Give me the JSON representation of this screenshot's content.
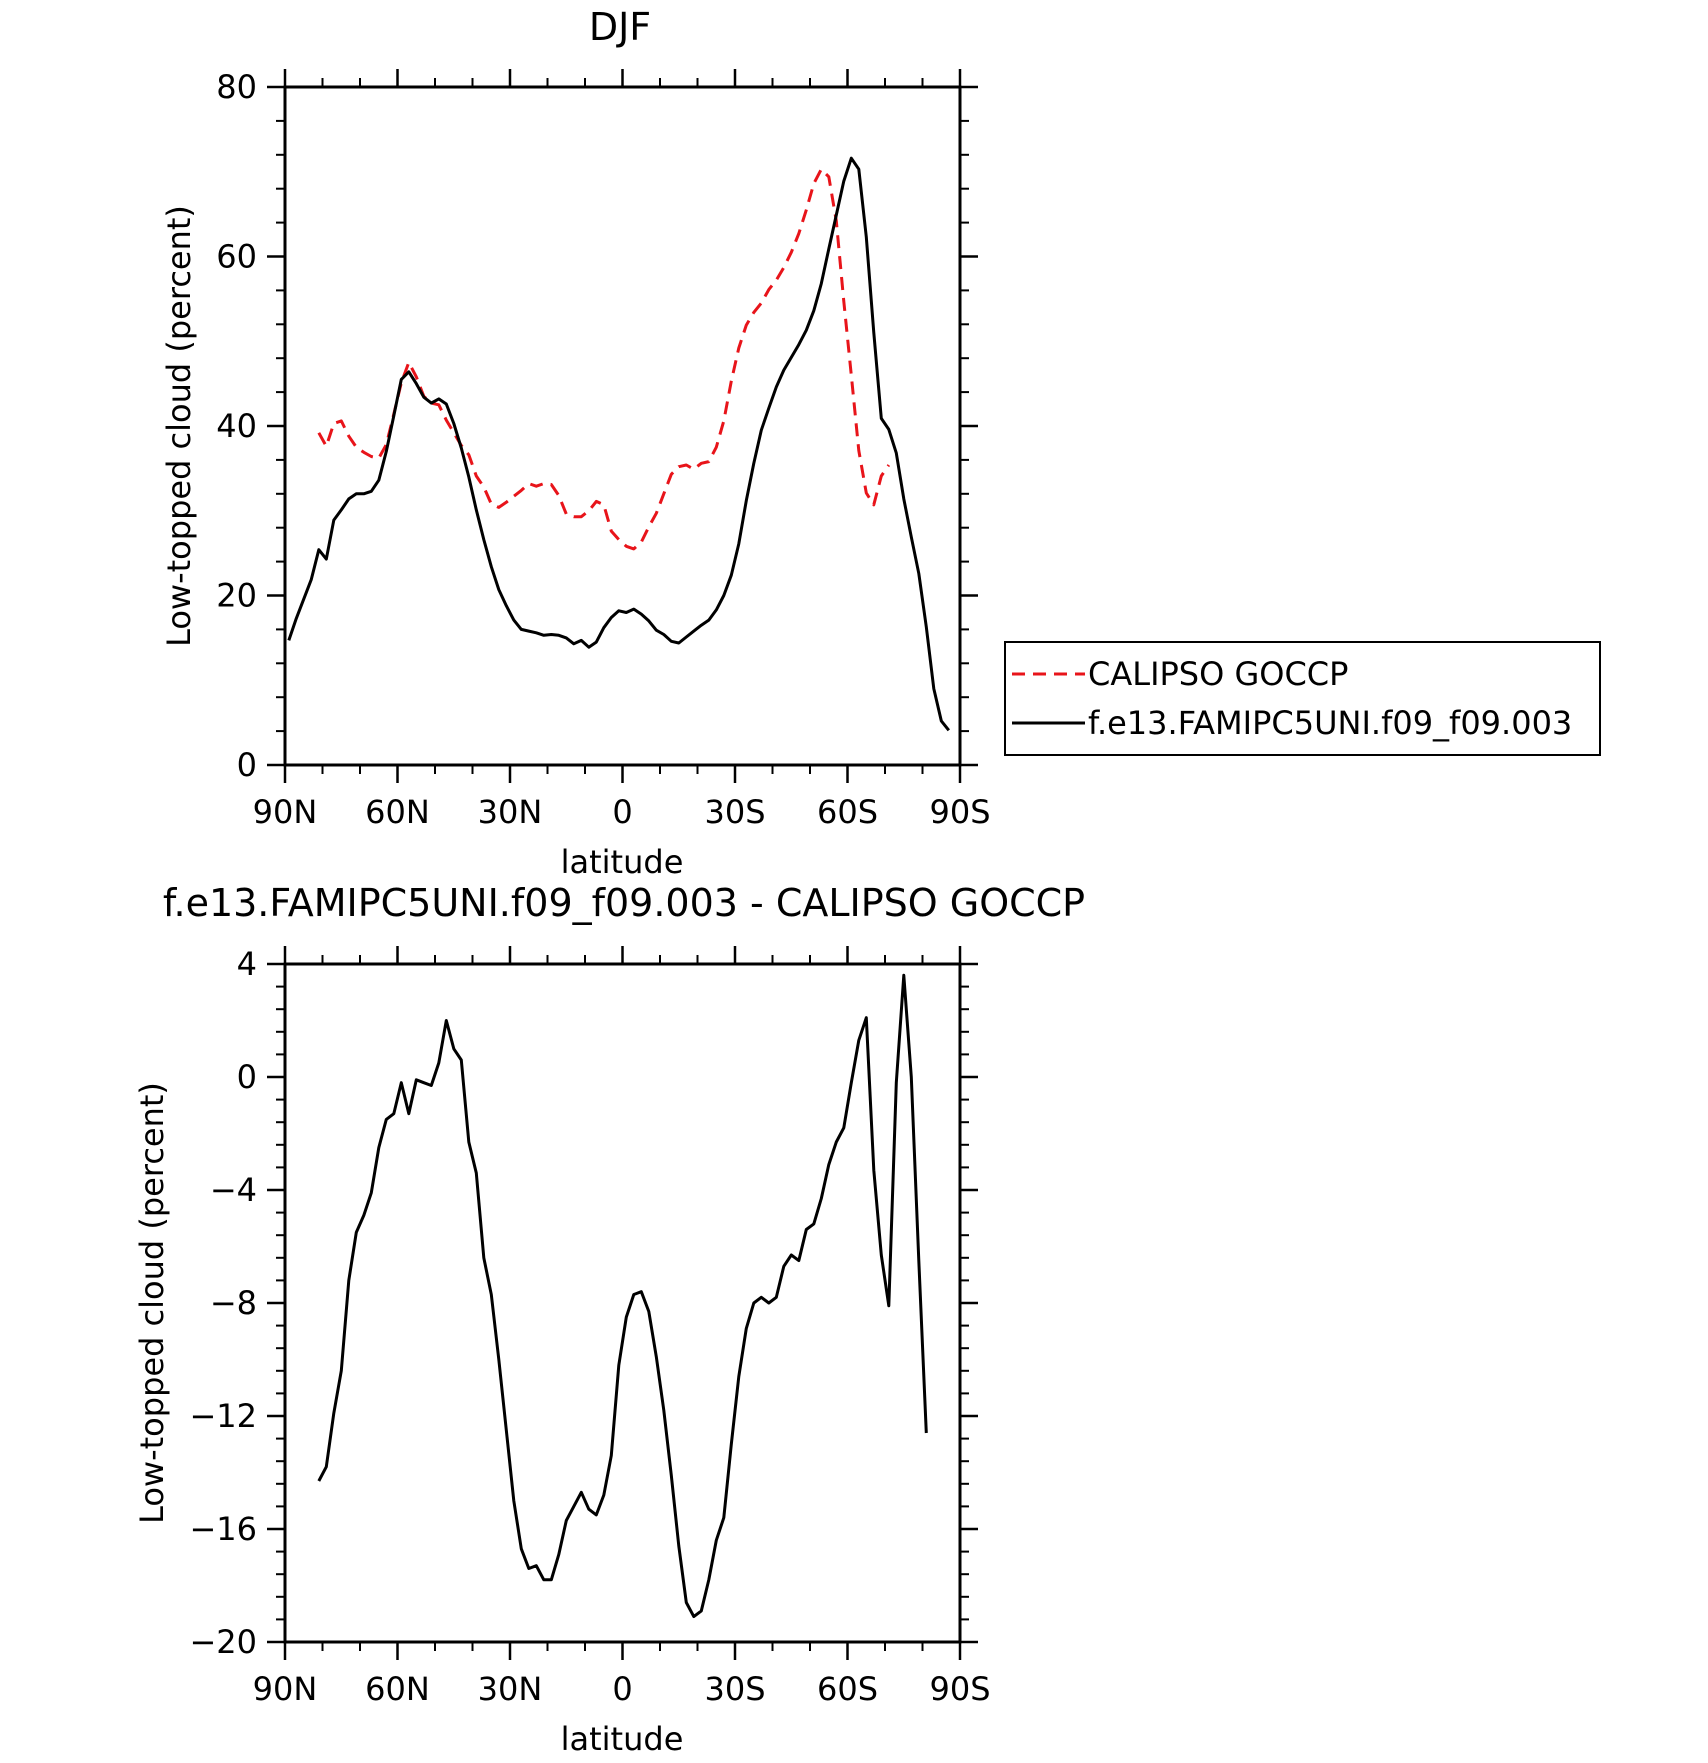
{
  "page_title": "DJF",
  "x_tick_labels": [
    "90N",
    "60N",
    "30N",
    "0",
    "30S",
    "60S",
    "90S"
  ],
  "chart_data": [
    {
      "type": "line",
      "title": "DJF",
      "xlabel": "latitude",
      "ylabel": "Low-topped cloud (percent)",
      "xlim": [
        90,
        -90
      ],
      "ylim": [
        0,
        80
      ],
      "x_ticks": [
        90,
        60,
        30,
        0,
        -30,
        -60,
        -90
      ],
      "y_ticks": [
        0,
        20,
        40,
        60,
        80
      ],
      "y_tick_labels": [
        "0",
        "20",
        "40",
        "60",
        "80"
      ],
      "legend_position": "right",
      "legend": [
        "CALIPSO GOCCP",
        "f.e13.FAMIPC5UNI.f09_f09.003"
      ],
      "series": [
        {
          "name": "CALIPSO GOCCP",
          "color": "#e8141a",
          "dash": "dashed",
          "x": [
            81,
            79,
            77,
            75,
            73,
            71,
            69,
            67,
            65,
            63,
            61,
            59,
            57,
            55,
            53,
            51,
            49,
            47,
            45,
            43,
            41,
            39,
            37,
            35,
            33,
            31,
            29,
            27,
            25,
            23,
            21,
            19,
            17,
            15,
            13,
            11,
            9,
            7,
            5,
            3,
            1,
            -1,
            -3,
            -5,
            -7,
            -9,
            -11,
            -13,
            -15,
            -17,
            -19,
            -21,
            -23,
            -25,
            -27,
            -29,
            -31,
            -33,
            -35,
            -37,
            -39,
            -41,
            -43,
            -45,
            -47,
            -49,
            -51,
            -53,
            -55,
            -57,
            -59,
            -61,
            -63,
            -65,
            -67,
            -69,
            -71,
            -73,
            -75,
            -77,
            -79,
            -81
          ],
          "values": [
            39.2,
            37.6,
            40.3,
            40.6,
            38.8,
            37.5,
            36.9,
            36.4,
            36.2,
            37.8,
            41.4,
            45.1,
            47.5,
            45.8,
            43.5,
            42.7,
            42.5,
            40.7,
            39.2,
            37.7,
            36.6,
            34.1,
            32.8,
            30.8,
            30.4,
            31.0,
            31.7,
            32.4,
            33.2,
            32.9,
            33.2,
            33.1,
            31.8,
            29.6,
            29.3,
            29.3,
            30.0,
            31.1,
            30.7,
            27.6,
            26.6,
            25.8,
            25.5,
            26.3,
            28.1,
            29.7,
            32.0,
            34.3,
            35.2,
            35.4,
            34.9,
            35.6,
            35.8,
            37.5,
            40.6,
            45.3,
            49.2,
            51.9,
            53.4,
            54.5,
            56.1,
            57.2,
            58.7,
            60.5,
            62.7,
            65.5,
            68.6,
            70.3,
            69.4,
            64.2,
            54.7,
            46.0,
            37.1,
            32.1,
            30.7,
            34.1,
            35.4,
            null,
            null,
            null,
            null,
            null
          ]
        },
        {
          "name": "f.e13.FAMIPC5UNI.f09_f09.003",
          "color": "#000000",
          "dash": "solid",
          "x": [
            89,
            87,
            85,
            83,
            81,
            79,
            77,
            75,
            73,
            71,
            69,
            67,
            65,
            63,
            61,
            59,
            57,
            55,
            53,
            51,
            49,
            47,
            45,
            43,
            41,
            39,
            37,
            35,
            33,
            31,
            29,
            27,
            25,
            23,
            21,
            19,
            17,
            15,
            13,
            11,
            9,
            7,
            5,
            3,
            1,
            -1,
            -3,
            -5,
            -7,
            -9,
            -11,
            -13,
            -15,
            -17,
            -19,
            -21,
            -23,
            -25,
            -27,
            -29,
            -31,
            -33,
            -35,
            -37,
            -39,
            -41,
            -43,
            -45,
            -47,
            -49,
            -51,
            -53,
            -55,
            -57,
            -59,
            -61,
            -63,
            -65,
            -67,
            -69,
            -71,
            -73,
            -75,
            -77,
            -79,
            -81,
            -83,
            -85,
            -87,
            -89
          ],
          "values": [
            14.7,
            17.3,
            19.6,
            21.9,
            25.4,
            24.3,
            28.9,
            30.1,
            31.4,
            32.0,
            32.0,
            32.3,
            33.6,
            37.0,
            41.2,
            45.5,
            46.4,
            45.0,
            43.4,
            42.7,
            43.2,
            42.6,
            40.3,
            37.4,
            34.0,
            30.1,
            26.6,
            23.4,
            20.7,
            18.8,
            17.1,
            16.0,
            15.8,
            15.6,
            15.3,
            15.4,
            15.3,
            15.0,
            14.3,
            14.7,
            13.9,
            14.5,
            16.2,
            17.4,
            18.2,
            18.0,
            18.4,
            17.8,
            17.0,
            15.9,
            15.4,
            14.6,
            14.4,
            15.1,
            15.8,
            16.5,
            17.1,
            18.3,
            20.0,
            22.4,
            26.1,
            31.2,
            35.6,
            39.5,
            42.1,
            44.6,
            46.6,
            48.1,
            49.6,
            51.3,
            53.6,
            56.8,
            60.9,
            64.9,
            68.9,
            71.6,
            70.3,
            62.3,
            51.0,
            40.9,
            39.6,
            36.8,
            31.4,
            26.9,
            22.6,
            16.3,
            9.0,
            5.2,
            4.1,
            null
          ]
        }
      ]
    },
    {
      "type": "line",
      "title": "f.e13.FAMIPC5UNI.f09_f09.003 - CALIPSO GOCCP",
      "xlabel": "latitude",
      "ylabel": "Low-topped cloud (percent)",
      "xlim": [
        90,
        -90
      ],
      "ylim": [
        -20,
        4
      ],
      "x_ticks": [
        90,
        60,
        30,
        0,
        -30,
        -60,
        -90
      ],
      "y_ticks": [
        -20,
        -16,
        -12,
        -8,
        -4,
        0,
        4
      ],
      "y_tick_labels": [
        "-20",
        "-16",
        "-12",
        "-8",
        "-4",
        "0",
        "4"
      ],
      "series": [
        {
          "color": "#000000",
          "dash": "solid",
          "x": [
            81,
            79,
            77,
            75,
            73,
            71,
            69,
            67,
            65,
            63,
            61,
            59,
            57,
            55,
            53,
            51,
            49,
            47,
            45,
            43,
            41,
            39,
            37,
            35,
            33,
            31,
            29,
            27,
            25,
            23,
            21,
            19,
            17,
            15,
            13,
            11,
            9,
            7,
            5,
            3,
            1,
            -1,
            -3,
            -5,
            -7,
            -9,
            -11,
            -13,
            -15,
            -17,
            -19,
            -21,
            -23,
            -25,
            -27,
            -29,
            -31,
            -33,
            -35,
            -37,
            -39,
            -41,
            -43,
            -45,
            -47,
            -49,
            -51,
            -53,
            -55,
            -57,
            -59,
            -61,
            -63,
            -65,
            -67,
            -69,
            -71,
            -73,
            -75,
            -77,
            -79,
            -81
          ],
          "values": [
            -14.3,
            -13.8,
            -11.9,
            -10.4,
            -7.2,
            -5.5,
            -4.9,
            -4.1,
            -2.5,
            -1.5,
            -1.3,
            -0.2,
            -1.3,
            -0.1,
            -0.2,
            -0.3,
            0.5,
            2.0,
            1.0,
            0.6,
            -2.3,
            -3.4,
            -6.4,
            -7.7,
            -10.0,
            -12.5,
            -15.0,
            -16.7,
            -17.4,
            -17.3,
            -17.8,
            -17.8,
            -16.9,
            -15.7,
            -15.2,
            -14.7,
            -15.3,
            -15.5,
            -14.8,
            -13.4,
            -10.2,
            -8.5,
            -7.7,
            -7.6,
            -8.3,
            -9.9,
            -11.8,
            -14.1,
            -16.6,
            -18.6,
            -19.1,
            -18.9,
            -17.8,
            -16.4,
            -15.6,
            -13.0,
            -10.6,
            -8.9,
            -8.0,
            -7.8,
            -8.0,
            -7.8,
            -6.7,
            -6.3,
            -6.5,
            -5.4,
            -5.2,
            -4.3,
            -3.1,
            -2.3,
            -1.8,
            -0.2,
            1.3,
            2.1,
            -3.3,
            -6.3,
            -8.1,
            -0.2,
            3.6,
            0.0,
            -6.5,
            -12.6
          ]
        }
      ]
    }
  ]
}
